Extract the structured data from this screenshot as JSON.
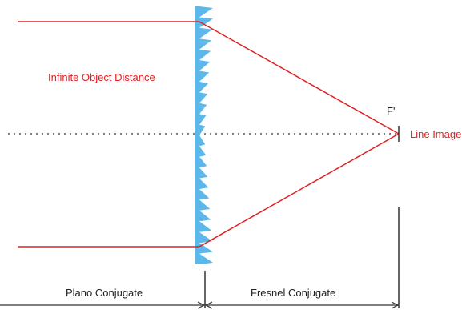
{
  "labels": {
    "object_distance": "Infinite Object Distance",
    "focal_point": "F'",
    "image": "Line Image",
    "plano": "Plano Conjugate",
    "fresnel": "Fresnel Conjugate"
  },
  "colors": {
    "ray": "#e02020",
    "lens": "#5cb8e8",
    "axis": "#333333",
    "text_red": "#e02020",
    "text_dark": "#222222"
  }
}
